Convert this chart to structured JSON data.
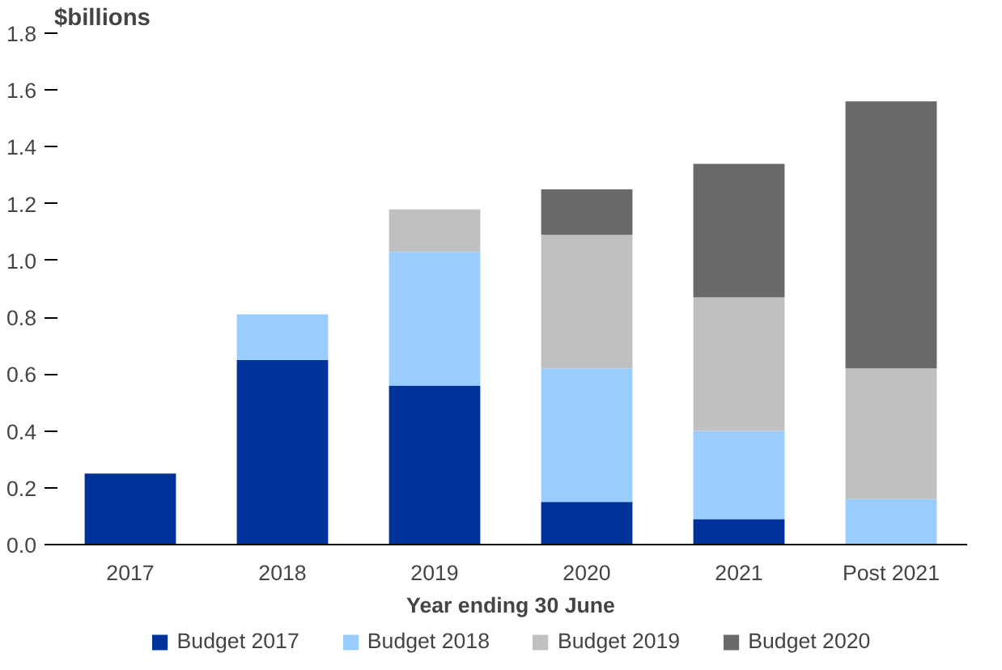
{
  "chart_data": {
    "type": "bar",
    "stacked": true,
    "ylabel": "$billions",
    "xlabel": "Year ending 30 June",
    "categories": [
      "2017",
      "2018",
      "2019",
      "2020",
      "2021",
      "Post 2021"
    ],
    "series": [
      {
        "name": "Budget 2017",
        "color": "#003399",
        "values": [
          0.25,
          0.65,
          0.56,
          0.15,
          0.09,
          null
        ]
      },
      {
        "name": "Budget 2018",
        "color": "#99ccff",
        "values": [
          null,
          0.16,
          0.47,
          0.47,
          0.31,
          0.16
        ]
      },
      {
        "name": "Budget 2019",
        "color": "#c0c0c0",
        "values": [
          null,
          null,
          0.15,
          0.47,
          0.47,
          0.46
        ]
      },
      {
        "name": "Budget 2020",
        "color": "#696969",
        "values": [
          null,
          null,
          null,
          0.16,
          0.47,
          0.94
        ]
      }
    ],
    "ylim": [
      0,
      1.8
    ],
    "yticks": [
      {
        "value": 0,
        "label": "0.0"
      },
      0.2,
      0.4,
      0.6,
      0.8,
      {
        "value": 1,
        "label": "1.0"
      },
      1.2,
      1.4,
      1.6,
      1.8
    ],
    "grid": false,
    "legend": "bottom"
  }
}
